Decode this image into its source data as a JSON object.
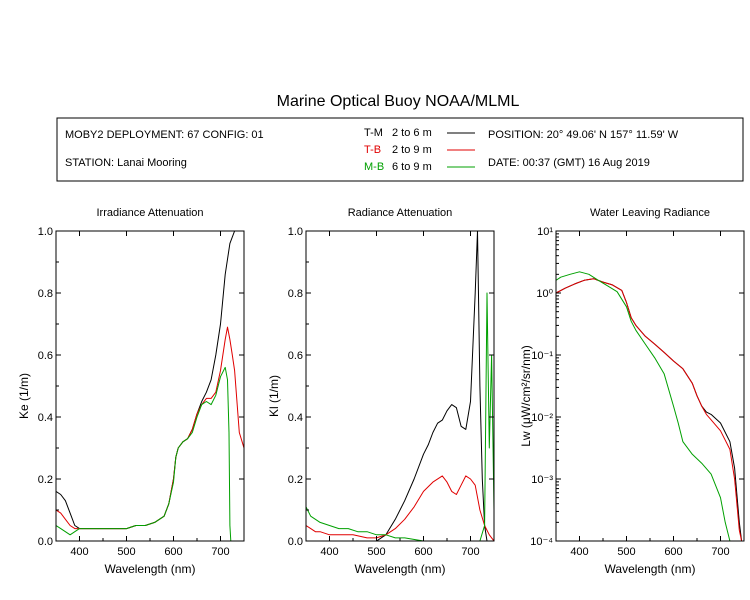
{
  "title": "Marine Optical Buoy NOAA/MLML",
  "info": {
    "deployment": "MOBY2 DEPLOYMENT: 67 CONFIG: 01",
    "station": "STATION: Lanai Mooring",
    "position": "POSITION: 20° 49.06' N   157° 11.59' W",
    "date": "DATE: 00:37 (GMT) 16 Aug 2019",
    "legend": [
      {
        "code": "T-M",
        "range": "2 to 6  m",
        "color": "#000000"
      },
      {
        "code": "T-B",
        "range": "2 to 9  m",
        "color": "#e00000"
      },
      {
        "code": "M-B",
        "range": "6 to 9  m",
        "color": "#00a000"
      }
    ]
  },
  "chart_data": [
    {
      "type": "line",
      "title": "Irradiance Attenuation",
      "xlabel": "Wavelength (nm)",
      "ylabel": "Ke  (1/m)",
      "xlim": [
        350,
        750
      ],
      "ylim": [
        0,
        1.0
      ],
      "xticks": [
        "400",
        "500",
        "600",
        "700"
      ],
      "yticks": [
        "0.0",
        "0.2",
        "0.4",
        "0.6",
        "0.8",
        "1.0"
      ],
      "series": [
        {
          "name": "T-M",
          "color": "#000000",
          "x": [
            350,
            360,
            370,
            380,
            390,
            400,
            420,
            440,
            460,
            480,
            500,
            520,
            540,
            560,
            580,
            590,
            600,
            605,
            610,
            620,
            630,
            640,
            650,
            660,
            670,
            680,
            690,
            700,
            710,
            720,
            730,
            740,
            750
          ],
          "y": [
            0.16,
            0.15,
            0.13,
            0.09,
            0.05,
            0.04,
            0.04,
            0.04,
            0.04,
            0.04,
            0.04,
            0.05,
            0.05,
            0.06,
            0.08,
            0.12,
            0.2,
            0.27,
            0.3,
            0.32,
            0.33,
            0.36,
            0.41,
            0.45,
            0.48,
            0.52,
            0.6,
            0.7,
            0.86,
            0.96,
            1.0,
            1.0,
            1.0
          ]
        },
        {
          "name": "T-B",
          "color": "#e00000",
          "x": [
            350,
            360,
            370,
            380,
            390,
            400,
            420,
            440,
            460,
            480,
            500,
            520,
            540,
            560,
            580,
            590,
            600,
            605,
            610,
            620,
            630,
            640,
            650,
            660,
            670,
            680,
            690,
            700,
            710,
            715,
            720,
            725,
            730,
            740,
            750
          ],
          "y": [
            0.1,
            0.09,
            0.07,
            0.05,
            0.04,
            0.04,
            0.04,
            0.04,
            0.04,
            0.04,
            0.04,
            0.05,
            0.05,
            0.06,
            0.08,
            0.12,
            0.2,
            0.27,
            0.3,
            0.32,
            0.33,
            0.36,
            0.41,
            0.44,
            0.46,
            0.46,
            0.48,
            0.55,
            0.65,
            0.69,
            0.65,
            0.6,
            0.55,
            0.35,
            0.3
          ]
        },
        {
          "name": "M-B",
          "color": "#00a000",
          "x": [
            350,
            360,
            370,
            380,
            390,
            400,
            420,
            440,
            460,
            480,
            500,
            520,
            540,
            560,
            580,
            590,
            600,
            605,
            610,
            620,
            630,
            640,
            650,
            660,
            670,
            680,
            690,
            700,
            710,
            715,
            718,
            720,
            722
          ],
          "y": [
            0.05,
            0.04,
            0.03,
            0.02,
            0.03,
            0.04,
            0.04,
            0.04,
            0.04,
            0.04,
            0.04,
            0.05,
            0.05,
            0.06,
            0.08,
            0.12,
            0.19,
            0.27,
            0.3,
            0.32,
            0.33,
            0.35,
            0.4,
            0.44,
            0.45,
            0.44,
            0.47,
            0.53,
            0.56,
            0.52,
            0.35,
            0.05,
            0.0
          ]
        }
      ]
    },
    {
      "type": "line",
      "title": "Radiance Attenuation",
      "xlabel": "Wavelength (nm)",
      "ylabel": "Kl  (1/m)",
      "xlim": [
        350,
        750
      ],
      "ylim": [
        0,
        1.0
      ],
      "xticks": [
        "400",
        "500",
        "600",
        "700"
      ],
      "yticks": [
        "0.0",
        "0.2",
        "0.4",
        "0.6",
        "0.8",
        "1.0"
      ],
      "series": [
        {
          "name": "T-M",
          "color": "#000000",
          "x": [
            350,
            400,
            450,
            480,
            500,
            520,
            540,
            560,
            580,
            600,
            610,
            620,
            630,
            640,
            650,
            660,
            670,
            680,
            690,
            700,
            710,
            715,
            720,
            725,
            730,
            735
          ],
          "y": [
            0.0,
            0.0,
            0.0,
            0.0,
            0.0,
            0.02,
            0.07,
            0.13,
            0.2,
            0.28,
            0.31,
            0.35,
            0.38,
            0.39,
            0.42,
            0.44,
            0.43,
            0.37,
            0.36,
            0.45,
            0.8,
            1.0,
            0.5,
            0.2,
            0.05,
            0.0
          ]
        },
        {
          "name": "T-B",
          "color": "#e00000",
          "x": [
            350,
            360,
            370,
            380,
            400,
            450,
            480,
            500,
            520,
            540,
            560,
            580,
            600,
            620,
            640,
            650,
            660,
            670,
            680,
            690,
            700,
            710,
            720,
            730,
            740,
            750
          ],
          "y": [
            0.05,
            0.04,
            0.03,
            0.03,
            0.02,
            0.02,
            0.01,
            0.01,
            0.02,
            0.04,
            0.07,
            0.11,
            0.16,
            0.19,
            0.21,
            0.19,
            0.16,
            0.15,
            0.18,
            0.21,
            0.2,
            0.18,
            0.1,
            0.05,
            0.02,
            0.0
          ]
        },
        {
          "name": "M-B",
          "color": "#00a000",
          "x": [
            350,
            360,
            370,
            380,
            400,
            420,
            440,
            460,
            480,
            500,
            520,
            540,
            560,
            600,
            620,
            640,
            700,
            720,
            730,
            735,
            740,
            745,
            750
          ],
          "y": [
            0.11,
            0.08,
            0.07,
            0.06,
            0.05,
            0.04,
            0.04,
            0.03,
            0.03,
            0.02,
            0.02,
            0.01,
            0.01,
            0.0,
            0.0,
            0.0,
            0.0,
            0.0,
            0.05,
            0.8,
            0.3,
            0.6,
            0.1
          ]
        }
      ]
    },
    {
      "type": "line",
      "title": "Water Leaving Radiance",
      "xlabel": "Wavelength (nm)",
      "ylabel": "Lw  (μW/cm²/sr/nm)",
      "xlim": [
        350,
        750
      ],
      "ylim": [
        0.0001,
        10
      ],
      "log_y": true,
      "xticks": [
        "400",
        "500",
        "600",
        "700"
      ],
      "yticks": [
        "10⁻⁴",
        "10⁻³",
        "10⁻²",
        "10⁻¹",
        "10⁰",
        "10¹"
      ],
      "series": [
        {
          "name": "T-M",
          "color": "#000000",
          "x": [
            350,
            370,
            390,
            410,
            430,
            450,
            470,
            490,
            500,
            510,
            520,
            540,
            560,
            580,
            600,
            620,
            640,
            650,
            660,
            670,
            680,
            700,
            720,
            730,
            740,
            745
          ],
          "y": [
            1.0,
            1.2,
            1.4,
            1.6,
            1.7,
            1.5,
            1.35,
            1.1,
            0.7,
            0.4,
            0.3,
            0.2,
            0.15,
            0.11,
            0.08,
            0.06,
            0.035,
            0.022,
            0.015,
            0.012,
            0.011,
            0.008,
            0.004,
            0.0015,
            0.0002,
            0.0001
          ]
        },
        {
          "name": "T-B",
          "color": "#e00000",
          "x": [
            350,
            370,
            390,
            410,
            430,
            450,
            470,
            490,
            500,
            510,
            520,
            540,
            560,
            580,
            600,
            620,
            640,
            650,
            660,
            670,
            680,
            700,
            720,
            730,
            740,
            745
          ],
          "y": [
            1.0,
            1.2,
            1.4,
            1.6,
            1.7,
            1.5,
            1.35,
            1.1,
            0.7,
            0.4,
            0.3,
            0.2,
            0.15,
            0.11,
            0.08,
            0.06,
            0.035,
            0.022,
            0.015,
            0.011,
            0.009,
            0.006,
            0.003,
            0.001,
            0.00015,
            0.0001
          ]
        },
        {
          "name": "M-B",
          "color": "#00a000",
          "x": [
            350,
            360,
            380,
            400,
            420,
            440,
            460,
            480,
            500,
            510,
            520,
            540,
            560,
            580,
            600,
            610,
            620,
            640,
            660,
            680,
            700,
            710,
            720
          ],
          "y": [
            1.6,
            1.8,
            2.0,
            2.2,
            2.0,
            1.6,
            1.3,
            1.05,
            0.6,
            0.35,
            0.25,
            0.15,
            0.09,
            0.05,
            0.015,
            0.008,
            0.004,
            0.0025,
            0.0018,
            0.0012,
            0.0005,
            0.0002,
            0.0001
          ]
        }
      ]
    }
  ]
}
